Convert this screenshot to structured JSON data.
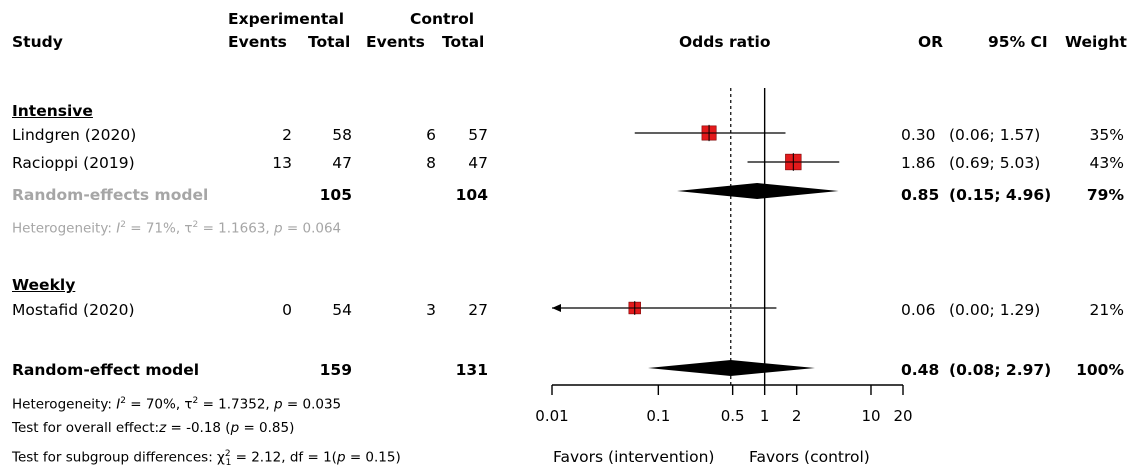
{
  "headers": {
    "study": "Study",
    "experimental": "Experimental",
    "control": "Control",
    "events": "Events",
    "total": "Total",
    "odds_ratio": "Odds ratio",
    "or": "OR",
    "ci": "95% CI",
    "weight": "Weight"
  },
  "groups": [
    {
      "name": "Intensive",
      "studies": [
        {
          "name": "Lindgren (2020)",
          "exp_events": "2",
          "exp_total": "58",
          "ctl_events": "6",
          "ctl_total": "57",
          "or": "0.30",
          "ci": "(0.06; 1.57)",
          "weight": "35%"
        },
        {
          "name": "Racioppi (2019)",
          "exp_events": "13",
          "exp_total": "47",
          "ctl_events": "8",
          "ctl_total": "47",
          "or": "1.86",
          "ci": "(0.69; 5.03)",
          "weight": "43%"
        }
      ],
      "model": {
        "name": "Random-effects model",
        "exp_total": "105",
        "ctl_total": "104",
        "or": "0.85",
        "ci": "(0.15; 4.96)",
        "weight": "79%"
      },
      "heterogeneity": {
        "prefix": "Heterogeneity:",
        "i2": "= 71%",
        "tau2": "= 1.1663",
        "p": "= 0.064"
      }
    },
    {
      "name": "Weekly",
      "studies": [
        {
          "name": "Mostafid (2020)",
          "exp_events": "0",
          "exp_total": "54",
          "ctl_events": "3",
          "ctl_total": "27",
          "or": "0.06",
          "ci": "(0.00; 1.29)",
          "weight": "21%"
        }
      ]
    }
  ],
  "overall": {
    "name": "Random-effect model",
    "exp_total": "159",
    "ctl_total": "131",
    "or": "0.48",
    "ci": "(0.08; 2.97)",
    "weight": "100%",
    "heterogeneity": {
      "prefix": "Heterogeneity:",
      "i2": "= 70%",
      "tau2": "= 1.7352",
      "p": "= 0.035"
    },
    "test_overall": {
      "prefix": "Test for overall effect:",
      "z": "= -0.18 (",
      "p": "= 0.85)"
    },
    "test_subgroup": {
      "prefix": "Test for subgroup differences:",
      "chi": "= 2.12, df = 1(",
      "p": "= 0.15)"
    }
  },
  "favors": {
    "left": "Favors (intervention)",
    "right": "Favors (control)"
  },
  "colors": {
    "square": "#e31a1c",
    "diamond": "#000000",
    "model_text": "#a6a6a6"
  },
  "chart_data": {
    "type": "forest",
    "x_scale": "log",
    "xlim": [
      0.01,
      20
    ],
    "ticks": [
      0.01,
      0.1,
      0.5,
      1,
      2,
      10,
      20
    ],
    "tick_labels": [
      "0.01",
      "0.1",
      "0.5",
      "1",
      "2",
      "10",
      "20"
    ],
    "null_line": 1,
    "overall_line": 0.48,
    "studies": [
      {
        "name": "Lindgren (2020)",
        "or": 0.3,
        "lo": 0.06,
        "hi": 1.57,
        "weight": 35
      },
      {
        "name": "Racioppi (2019)",
        "or": 1.86,
        "lo": 0.69,
        "hi": 5.03,
        "weight": 43
      },
      {
        "name": "Mostafid (2020)",
        "or": 0.06,
        "lo": 0.0,
        "hi": 1.29,
        "weight": 21
      }
    ],
    "models": [
      {
        "name": "Random-effects model",
        "or": 0.85,
        "lo": 0.15,
        "hi": 4.96
      },
      {
        "name": "Random-effect model",
        "or": 0.48,
        "lo": 0.08,
        "hi": 2.97
      }
    ]
  }
}
